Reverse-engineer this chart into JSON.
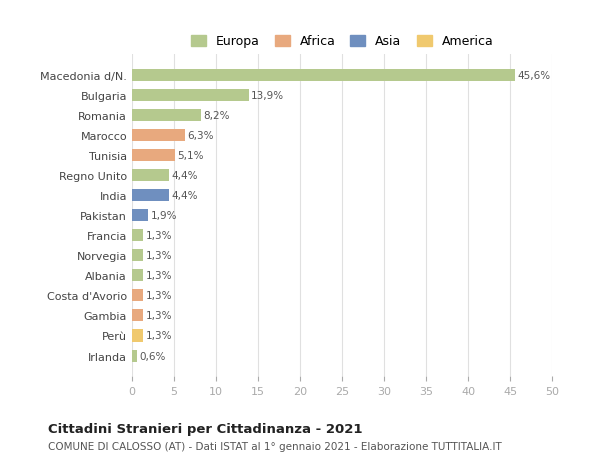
{
  "countries": [
    "Macedonia d/N.",
    "Bulgaria",
    "Romania",
    "Marocco",
    "Tunisia",
    "Regno Unito",
    "India",
    "Pakistan",
    "Francia",
    "Norvegia",
    "Albania",
    "Costa d'Avorio",
    "Gambia",
    "Perù",
    "Irlanda"
  ],
  "values": [
    45.6,
    13.9,
    8.2,
    6.3,
    5.1,
    4.4,
    4.4,
    1.9,
    1.3,
    1.3,
    1.3,
    1.3,
    1.3,
    1.3,
    0.6
  ],
  "labels": [
    "45,6%",
    "13,9%",
    "8,2%",
    "6,3%",
    "5,1%",
    "4,4%",
    "4,4%",
    "1,9%",
    "1,3%",
    "1,3%",
    "1,3%",
    "1,3%",
    "1,3%",
    "1,3%",
    "0,6%"
  ],
  "colors": [
    "#b5c98e",
    "#b5c98e",
    "#b5c98e",
    "#e8a97e",
    "#e8a97e",
    "#b5c98e",
    "#6f8fbf",
    "#6f8fbf",
    "#b5c98e",
    "#b5c98e",
    "#b5c98e",
    "#e8a97e",
    "#e8a97e",
    "#f0c96e",
    "#b5c98e"
  ],
  "legend": {
    "Europa": "#b5c98e",
    "Africa": "#e8a97e",
    "Asia": "#6f8fbf",
    "America": "#f0c96e"
  },
  "title": "Cittadini Stranieri per Cittadinanza - 2021",
  "subtitle": "COMUNE DI CALOSSO (AT) - Dati ISTAT al 1° gennaio 2021 - Elaborazione TUTTITALIA.IT",
  "xlim": [
    0,
    50
  ],
  "xticks": [
    0,
    5,
    10,
    15,
    20,
    25,
    30,
    35,
    40,
    45,
    50
  ],
  "background_color": "#ffffff",
  "grid_color": "#e0e0e0"
}
